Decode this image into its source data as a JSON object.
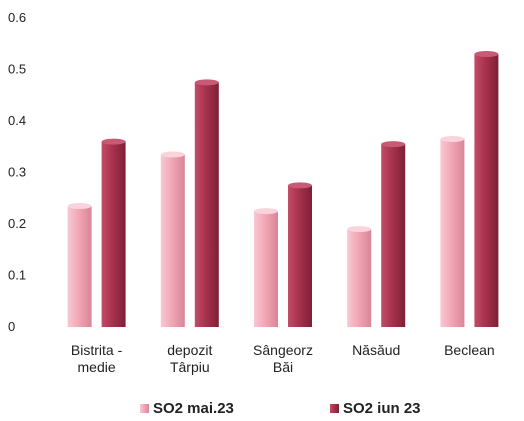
{
  "chart_data": {
    "type": "bar",
    "categories": [
      [
        "Bistrita -",
        "medie"
      ],
      [
        "depozit",
        "Târpiu"
      ],
      [
        "Sângeorz",
        "Băi"
      ],
      [
        "Năsăud"
      ],
      [
        "Beclean"
      ]
    ],
    "series": [
      {
        "name": "SO2 mai.23",
        "values": [
          0.235,
          0.335,
          0.225,
          0.19,
          0.365
        ],
        "color": "#f2a7b6"
      },
      {
        "name": "SO2 iun 23",
        "values": [
          0.36,
          0.475,
          0.275,
          0.355,
          0.53
        ],
        "color": "#a8324e"
      }
    ],
    "ylim": [
      0,
      0.6
    ],
    "yticks": [
      "0",
      "0.1",
      "0.2",
      "0.3",
      "0.4",
      "0.5",
      "0.6"
    ],
    "legend_position": "bottom",
    "grid": false
  }
}
